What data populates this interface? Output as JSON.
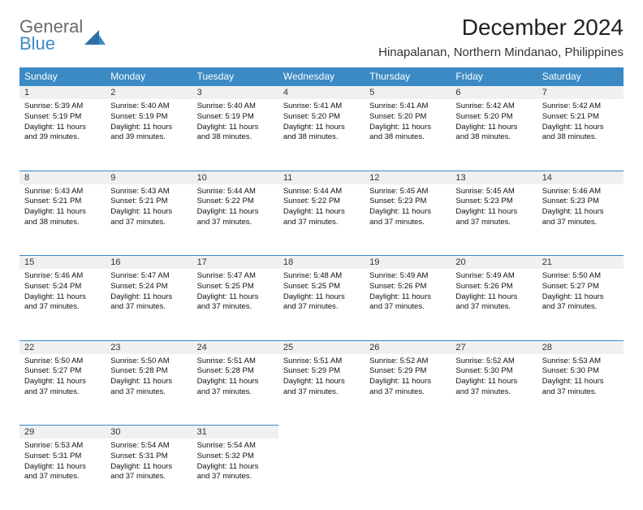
{
  "logo": {
    "line1": "General",
    "line2": "Blue"
  },
  "title": "December 2024",
  "location": "Hinapalanan, Northern Mindanao, Philippines",
  "colors": {
    "header_bg": "#3b8ac4",
    "header_text": "#ffffff",
    "daynum_bg": "#eef0f1",
    "border": "#3b8ac4",
    "logo_gray": "#6b6b6b",
    "logo_blue": "#3b8ac4"
  },
  "dayHeaders": [
    "Sunday",
    "Monday",
    "Tuesday",
    "Wednesday",
    "Thursday",
    "Friday",
    "Saturday"
  ],
  "weeks": [
    [
      {
        "n": "1",
        "sr": "Sunrise: 5:39 AM",
        "ss": "Sunset: 5:19 PM",
        "dl": "Daylight: 11 hours and 39 minutes."
      },
      {
        "n": "2",
        "sr": "Sunrise: 5:40 AM",
        "ss": "Sunset: 5:19 PM",
        "dl": "Daylight: 11 hours and 39 minutes."
      },
      {
        "n": "3",
        "sr": "Sunrise: 5:40 AM",
        "ss": "Sunset: 5:19 PM",
        "dl": "Daylight: 11 hours and 38 minutes."
      },
      {
        "n": "4",
        "sr": "Sunrise: 5:41 AM",
        "ss": "Sunset: 5:20 PM",
        "dl": "Daylight: 11 hours and 38 minutes."
      },
      {
        "n": "5",
        "sr": "Sunrise: 5:41 AM",
        "ss": "Sunset: 5:20 PM",
        "dl": "Daylight: 11 hours and 38 minutes."
      },
      {
        "n": "6",
        "sr": "Sunrise: 5:42 AM",
        "ss": "Sunset: 5:20 PM",
        "dl": "Daylight: 11 hours and 38 minutes."
      },
      {
        "n": "7",
        "sr": "Sunrise: 5:42 AM",
        "ss": "Sunset: 5:21 PM",
        "dl": "Daylight: 11 hours and 38 minutes."
      }
    ],
    [
      {
        "n": "8",
        "sr": "Sunrise: 5:43 AM",
        "ss": "Sunset: 5:21 PM",
        "dl": "Daylight: 11 hours and 38 minutes."
      },
      {
        "n": "9",
        "sr": "Sunrise: 5:43 AM",
        "ss": "Sunset: 5:21 PM",
        "dl": "Daylight: 11 hours and 37 minutes."
      },
      {
        "n": "10",
        "sr": "Sunrise: 5:44 AM",
        "ss": "Sunset: 5:22 PM",
        "dl": "Daylight: 11 hours and 37 minutes."
      },
      {
        "n": "11",
        "sr": "Sunrise: 5:44 AM",
        "ss": "Sunset: 5:22 PM",
        "dl": "Daylight: 11 hours and 37 minutes."
      },
      {
        "n": "12",
        "sr": "Sunrise: 5:45 AM",
        "ss": "Sunset: 5:23 PM",
        "dl": "Daylight: 11 hours and 37 minutes."
      },
      {
        "n": "13",
        "sr": "Sunrise: 5:45 AM",
        "ss": "Sunset: 5:23 PM",
        "dl": "Daylight: 11 hours and 37 minutes."
      },
      {
        "n": "14",
        "sr": "Sunrise: 5:46 AM",
        "ss": "Sunset: 5:23 PM",
        "dl": "Daylight: 11 hours and 37 minutes."
      }
    ],
    [
      {
        "n": "15",
        "sr": "Sunrise: 5:46 AM",
        "ss": "Sunset: 5:24 PM",
        "dl": "Daylight: 11 hours and 37 minutes."
      },
      {
        "n": "16",
        "sr": "Sunrise: 5:47 AM",
        "ss": "Sunset: 5:24 PM",
        "dl": "Daylight: 11 hours and 37 minutes."
      },
      {
        "n": "17",
        "sr": "Sunrise: 5:47 AM",
        "ss": "Sunset: 5:25 PM",
        "dl": "Daylight: 11 hours and 37 minutes."
      },
      {
        "n": "18",
        "sr": "Sunrise: 5:48 AM",
        "ss": "Sunset: 5:25 PM",
        "dl": "Daylight: 11 hours and 37 minutes."
      },
      {
        "n": "19",
        "sr": "Sunrise: 5:49 AM",
        "ss": "Sunset: 5:26 PM",
        "dl": "Daylight: 11 hours and 37 minutes."
      },
      {
        "n": "20",
        "sr": "Sunrise: 5:49 AM",
        "ss": "Sunset: 5:26 PM",
        "dl": "Daylight: 11 hours and 37 minutes."
      },
      {
        "n": "21",
        "sr": "Sunrise: 5:50 AM",
        "ss": "Sunset: 5:27 PM",
        "dl": "Daylight: 11 hours and 37 minutes."
      }
    ],
    [
      {
        "n": "22",
        "sr": "Sunrise: 5:50 AM",
        "ss": "Sunset: 5:27 PM",
        "dl": "Daylight: 11 hours and 37 minutes."
      },
      {
        "n": "23",
        "sr": "Sunrise: 5:50 AM",
        "ss": "Sunset: 5:28 PM",
        "dl": "Daylight: 11 hours and 37 minutes."
      },
      {
        "n": "24",
        "sr": "Sunrise: 5:51 AM",
        "ss": "Sunset: 5:28 PM",
        "dl": "Daylight: 11 hours and 37 minutes."
      },
      {
        "n": "25",
        "sr": "Sunrise: 5:51 AM",
        "ss": "Sunset: 5:29 PM",
        "dl": "Daylight: 11 hours and 37 minutes."
      },
      {
        "n": "26",
        "sr": "Sunrise: 5:52 AM",
        "ss": "Sunset: 5:29 PM",
        "dl": "Daylight: 11 hours and 37 minutes."
      },
      {
        "n": "27",
        "sr": "Sunrise: 5:52 AM",
        "ss": "Sunset: 5:30 PM",
        "dl": "Daylight: 11 hours and 37 minutes."
      },
      {
        "n": "28",
        "sr": "Sunrise: 5:53 AM",
        "ss": "Sunset: 5:30 PM",
        "dl": "Daylight: 11 hours and 37 minutes."
      }
    ],
    [
      {
        "n": "29",
        "sr": "Sunrise: 5:53 AM",
        "ss": "Sunset: 5:31 PM",
        "dl": "Daylight: 11 hours and 37 minutes."
      },
      {
        "n": "30",
        "sr": "Sunrise: 5:54 AM",
        "ss": "Sunset: 5:31 PM",
        "dl": "Daylight: 11 hours and 37 minutes."
      },
      {
        "n": "31",
        "sr": "Sunrise: 5:54 AM",
        "ss": "Sunset: 5:32 PM",
        "dl": "Daylight: 11 hours and 37 minutes."
      },
      null,
      null,
      null,
      null
    ]
  ]
}
